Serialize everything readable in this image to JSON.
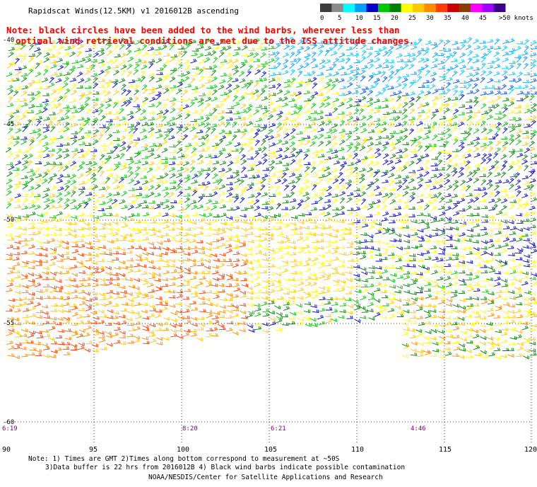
{
  "header": {
    "title": "Rapidscat Winds(12.5KM) v1 2016012B ascending"
  },
  "note": {
    "line1": "Note: black circles have been added to the wind barbs, wherever less than",
    "line2": "optimal wind retrieval conditions are met due to the ISS attitude changes."
  },
  "color_scale": {
    "labels": [
      "0",
      "5",
      "10",
      "15",
      "20",
      "25",
      "30",
      "35",
      "40",
      "45",
      ">50 knots"
    ],
    "colors": [
      "#3c3c3c",
      "#8c8c8c",
      "#00ffff",
      "#00a0ff",
      "#0000c8",
      "#00c800",
      "#008000",
      "#ffff00",
      "#ffc800",
      "#ff8c00",
      "#ff3c00",
      "#c80000",
      "#8c3c00",
      "#ff00ff",
      "#a000ff",
      "#3c008c"
    ]
  },
  "map": {
    "lat_labels": [
      "-40",
      "-45",
      "-50",
      "-55",
      "-60"
    ],
    "lon_labels": [
      "90",
      "95",
      "100",
      "105",
      "110",
      "115",
      "120"
    ],
    "time_labels": [
      "6:19",
      "8:20",
      "6:21",
      "4:46"
    ]
  },
  "footer": {
    "note1": "Note: 1) Times are GMT 2)Times along bottom correspond to measurement at ~50S",
    "note2": "3)Data buffer is 22 hrs from 2016012B 4) Black wind barbs indicate possible contamination",
    "credit": "NOAA/NESDIS/Center for Satellite Applications and Research"
  }
}
